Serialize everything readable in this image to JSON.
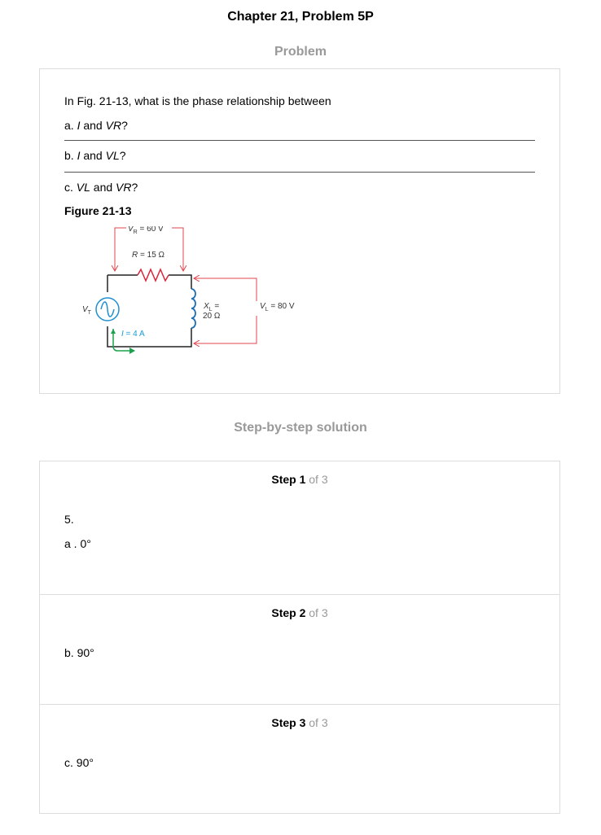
{
  "page": {
    "title": "Chapter 21, Problem 5P",
    "problem_heading": "Problem",
    "solution_heading": "Step-by-step solution"
  },
  "problem": {
    "intro": "In Fig. 21-13, what is the phase relationship between",
    "questions": [
      {
        "prefix": "a. ",
        "var1": "I",
        "mid": " and ",
        "var2": "VR",
        "suffix": "?"
      },
      {
        "prefix": "b. ",
        "var1": "I",
        "mid": " and ",
        "var2": "VL",
        "suffix": "?"
      },
      {
        "prefix": "c. ",
        "var1": "VL",
        "mid": " and ",
        "var2": "VR",
        "suffix": "?"
      }
    ],
    "figure_label": "Figure 21-13",
    "figure": {
      "vr_sym": "V",
      "vr_sub": "R",
      "vr_val": " = 60 V",
      "r_sym": "R",
      "r_val": " = 15 Ω",
      "vt_sym": "V",
      "vt_sub": "T",
      "xl_sym": "X",
      "xl_sub": "L",
      "xl_eq": " =",
      "xl_val": "20 Ω",
      "vl_sym": "V",
      "vl_sub": "L",
      "vl_val": " = 80 V",
      "i_sym": "I",
      "i_val": " = 4 A",
      "colors": {
        "arrow_red": "#e0454f",
        "resistor_red": "#d6263b",
        "coil_blue": "#1f6fb5",
        "source_blue": "#1f8fd0",
        "current_green": "#1aa34a",
        "current_label": "#1a9ad6"
      }
    }
  },
  "steps": [
    {
      "label": "Step 1",
      "of": " of 3",
      "lines": [
        "5.",
        "a . 0°"
      ]
    },
    {
      "label": "Step 2",
      "of": " of 3",
      "lines": [
        "b. 90°"
      ]
    },
    {
      "label": "Step 3",
      "of": " of 3",
      "lines": [
        "c. 90°"
      ]
    }
  ]
}
